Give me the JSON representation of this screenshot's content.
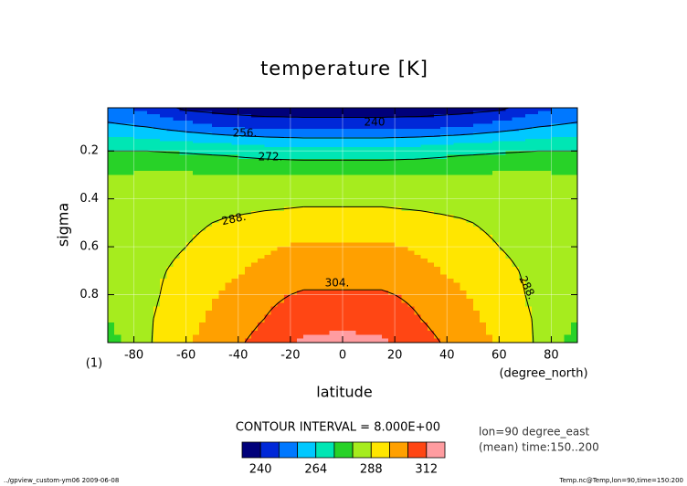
{
  "chart_data": {
    "type": "contour",
    "title": "temperature [K]",
    "x_label": "latitude",
    "y_label": "sigma",
    "x_unit": "(degree_north)",
    "panel_label": "(1)",
    "contour_interval_label": "CONTOUR INTERVAL = 8.000E+00",
    "notes": [
      "lon=90 degree_east",
      "(mean) time:150..200"
    ],
    "footer_left": "../gpview_custom-ym06  2009-06-08",
    "footer_right": "Temp.nc@Temp,lon=90,time=150:200",
    "xlim": [
      -90,
      90
    ],
    "xticks": [
      -80,
      -60,
      -40,
      -20,
      0,
      20,
      40,
      60,
      80
    ],
    "ylim": [
      1,
      0.02
    ],
    "yticks": [
      0.2,
      0.4,
      0.6,
      0.8
    ],
    "grid": true,
    "x": [
      -90,
      -75,
      -60,
      -45,
      -30,
      -15,
      0,
      15,
      30,
      45,
      60,
      75,
      90
    ],
    "y": [
      0.02,
      0.1,
      0.15,
      0.2,
      0.3,
      0.4,
      0.5,
      0.6,
      0.7,
      0.8,
      0.9,
      1.0
    ],
    "z": [
      [
        250,
        246,
        238,
        236,
        235,
        235,
        235,
        235,
        235,
        236,
        238,
        246,
        250
      ],
      [
        258,
        256,
        252,
        248,
        246,
        245,
        245,
        245,
        246,
        248,
        252,
        256,
        258
      ],
      [
        266,
        264,
        262,
        260,
        258,
        257,
        257,
        257,
        258,
        260,
        262,
        264,
        266
      ],
      [
        272,
        272,
        271,
        270,
        268,
        267,
        267,
        267,
        268,
        270,
        271,
        272,
        272
      ],
      [
        280,
        281,
        281,
        280,
        280,
        280,
        280,
        280,
        280,
        280,
        281,
        281,
        280
      ],
      [
        282,
        283,
        283,
        284,
        285,
        286,
        286,
        286,
        285,
        284,
        283,
        283,
        282
      ],
      [
        282,
        284,
        286,
        289,
        291,
        292,
        292,
        292,
        291,
        289,
        286,
        284,
        282
      ],
      [
        282,
        285,
        288,
        292,
        295,
        297,
        297,
        297,
        295,
        292,
        288,
        285,
        282
      ],
      [
        282,
        286,
        290,
        294,
        298,
        300,
        300,
        300,
        298,
        294,
        290,
        286,
        282
      ],
      [
        281,
        286,
        292,
        297,
        302,
        305,
        305,
        305,
        302,
        297,
        292,
        286,
        281
      ],
      [
        280,
        287,
        293,
        299,
        304,
        309,
        310,
        309,
        304,
        299,
        293,
        287,
        280
      ],
      [
        276,
        287,
        295,
        301,
        307,
        313,
        314,
        313,
        307,
        301,
        295,
        287,
        276
      ]
    ],
    "levels": [
      232,
      240,
      248,
      256,
      264,
      272,
      280,
      288,
      296,
      304,
      312,
      320
    ],
    "colors": [
      "#00007a",
      "#0028d8",
      "#0078ff",
      "#00c8ff",
      "#00e6b4",
      "#28d228",
      "#a6ec1e",
      "#ffe600",
      "#ffa000",
      "#ff4614",
      "#ff9ca0"
    ],
    "contour_levels": [
      240,
      256,
      272,
      288,
      304
    ],
    "contour_labels": [
      {
        "value": 240,
        "label": "240"
      },
      {
        "value": 256,
        "label": "256."
      },
      {
        "value": 272,
        "label": "272."
      },
      {
        "value": 288,
        "label": "288."
      },
      {
        "value": 304,
        "label": "304."
      },
      {
        "value": 288,
        "label": "288."
      }
    ],
    "colorbar_ticks": [
      240,
      264,
      288,
      312
    ]
  }
}
